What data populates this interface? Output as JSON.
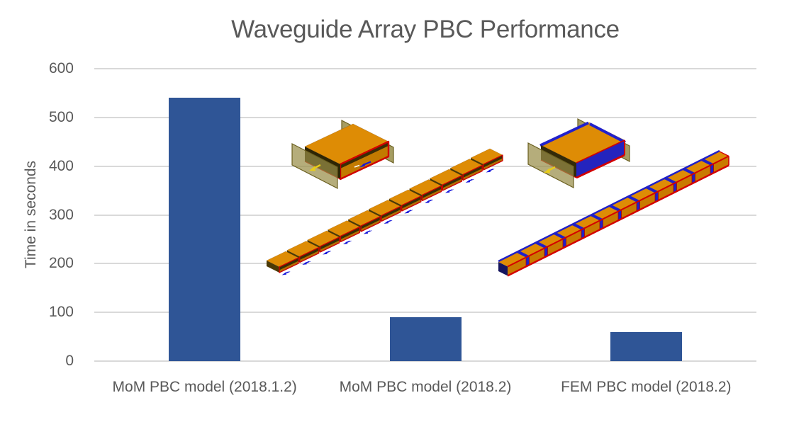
{
  "title": "Waveguide Array PBC Performance",
  "chart_data": {
    "type": "bar",
    "title": "Waveguide Array PBC Performance",
    "categories": [
      "MoM PBC model (2018.1.2)",
      "MoM PBC model (2018.2)",
      "FEM PBC model (2018.2)"
    ],
    "values": [
      540,
      90,
      60
    ],
    "xlabel": "",
    "ylabel": "Time in seconds",
    "ylim": [
      0,
      600
    ],
    "yticks": [
      0,
      100,
      200,
      300,
      400,
      500,
      600
    ],
    "grid": true,
    "legend": false,
    "bar_color": "#2F5596",
    "gridline_color": "#D9D9D9",
    "text_color": "#595959",
    "annotations": [
      "MoM PBC unit-cell waveguide model inset",
      "MoM waveguide array model inset",
      "FEM PBC unit-cell waveguide model inset",
      "FEM waveguide array model inset"
    ]
  },
  "model_colors": {
    "copper_orange": "#DE8C05",
    "inner_orange": "#C27A00",
    "edge_red": "#D10000",
    "fem_blue": "#2424BE",
    "arrow_blue": "#1616D9",
    "pbc_plate_olive": "#968C46",
    "interior_dark": "#3A2D06",
    "arrow_yellow": "#E8CC1A"
  }
}
